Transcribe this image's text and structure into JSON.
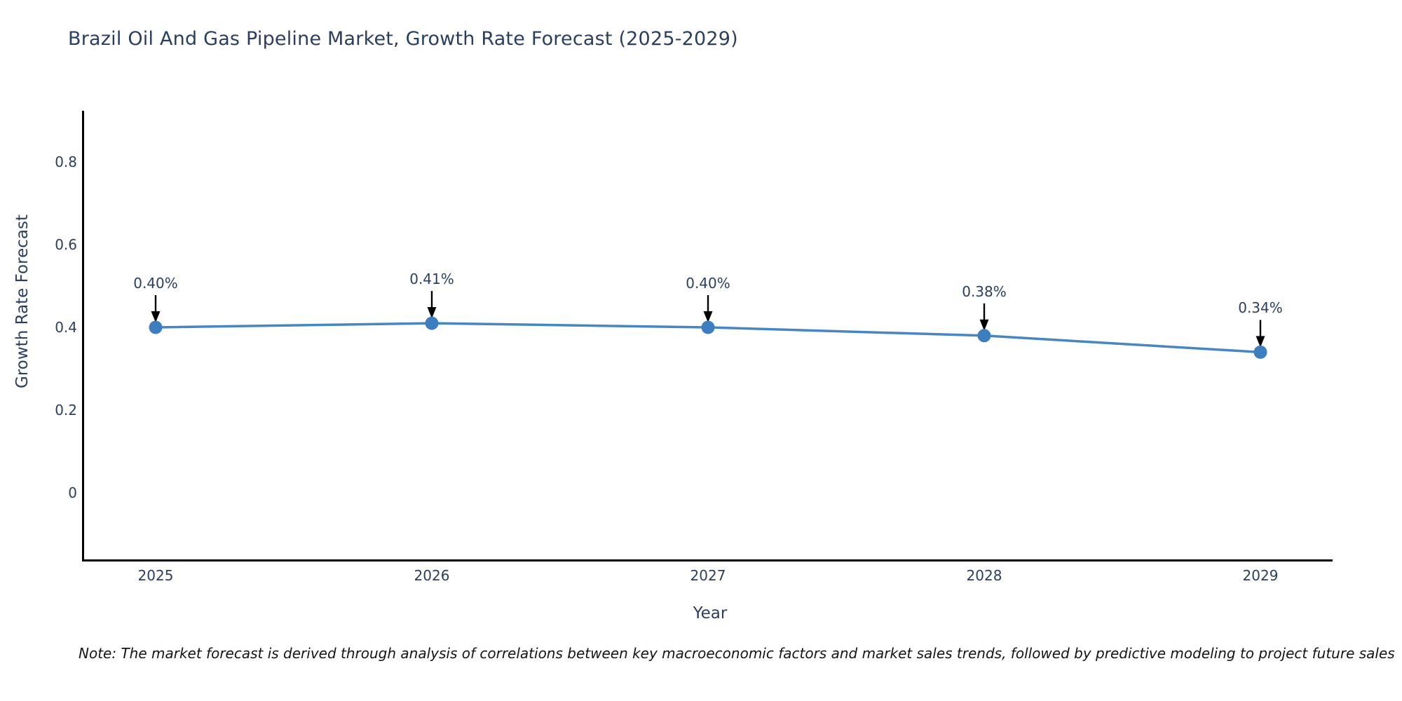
{
  "page": {
    "note": "Note: The market forecast is derived through analysis of correlations between key macroeconomic factors and market sales trends, followed by predictive modeling to project future sales"
  },
  "chart_data": {
    "type": "line",
    "title": "Brazil Oil And Gas Pipeline Market, Growth Rate Forecast (2025-2029)",
    "xlabel": "Year",
    "ylabel": "Growth Rate Forecast",
    "x": [
      2025,
      2026,
      2027,
      2028,
      2029
    ],
    "xtick_labels": [
      "2025",
      "2026",
      "2027",
      "2028",
      "2029"
    ],
    "series": [
      {
        "name": "Growth Rate Forecast",
        "values": [
          0.4,
          0.41,
          0.4,
          0.38,
          0.34
        ]
      }
    ],
    "point_labels": [
      "0.40%",
      "0.41%",
      "0.40%",
      "0.38%",
      "0.34%"
    ],
    "yticks": [
      0,
      0.2,
      0.4,
      0.6,
      0.8
    ],
    "ytick_labels": [
      "0",
      "0.2",
      "0.4",
      "0.6",
      "0.8"
    ],
    "ylim": [
      -0.16,
      0.93
    ],
    "grid": false,
    "legend_position": "none",
    "line_color": "#4786c1",
    "marker_color": "#3c7ebf",
    "annotation_arrow_color": "#000000",
    "text_color": "#2a3f5f"
  }
}
